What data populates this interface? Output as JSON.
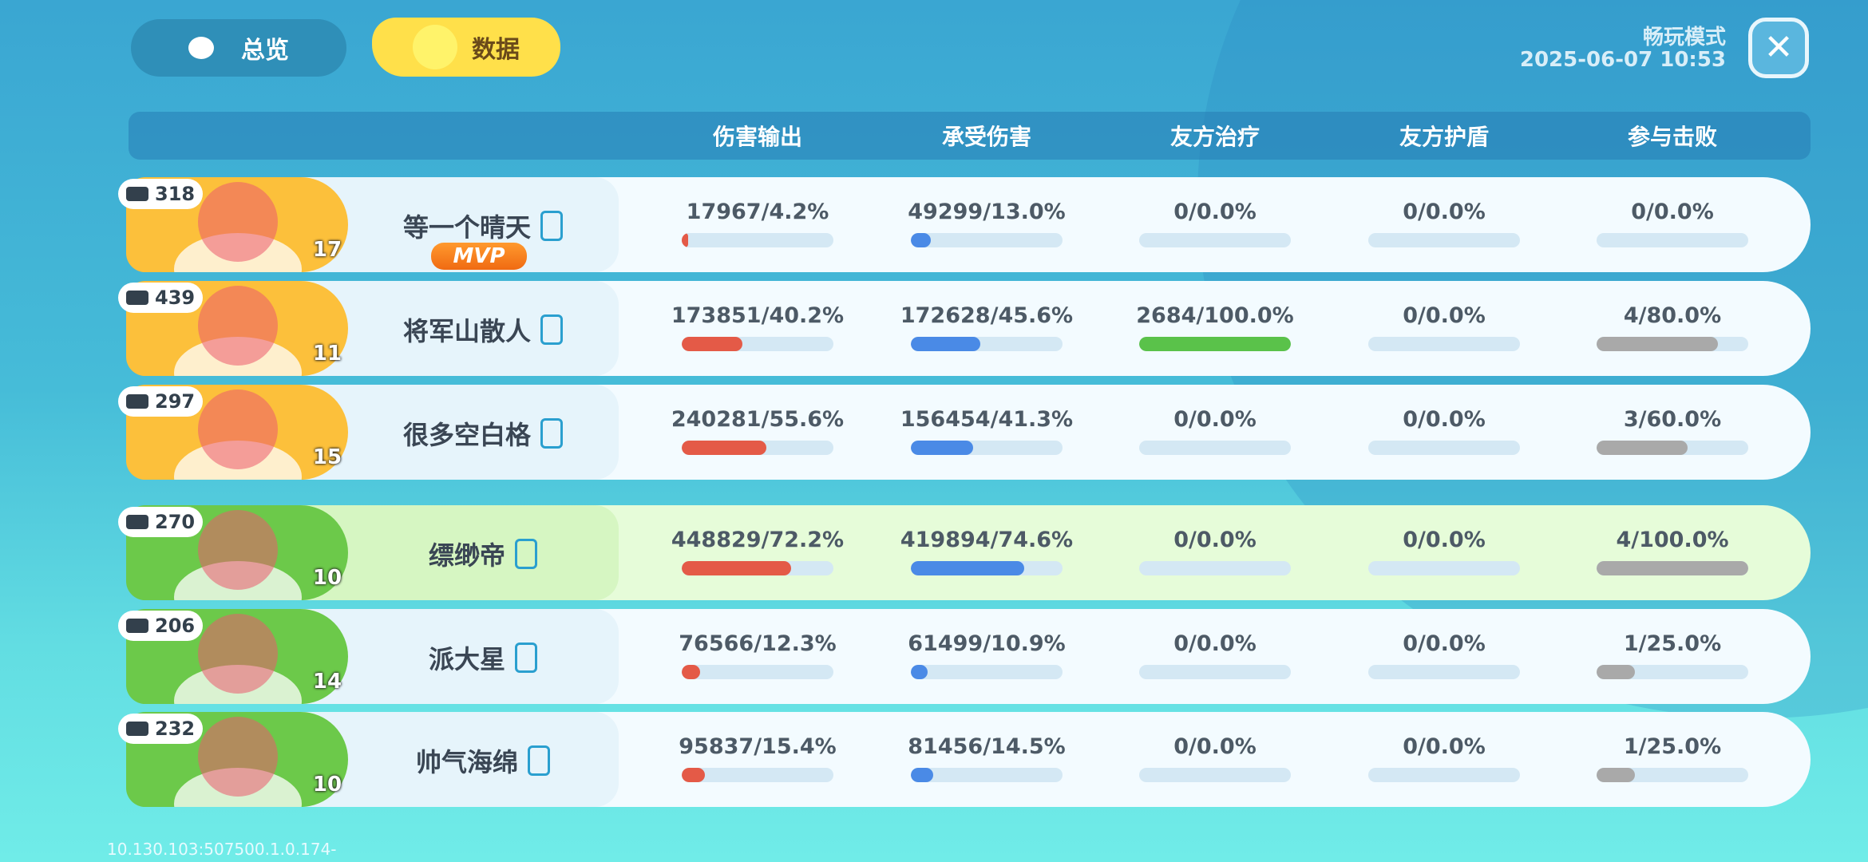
{
  "tabs": [
    {
      "label": "总览"
    },
    {
      "label": "数据",
      "active": true
    }
  ],
  "mode": "畅玩模式",
  "datetime": "2025-06-07 10:53",
  "columns": [
    {
      "title": "伤害输出",
      "color": "#e45a47"
    },
    {
      "title": "承受伤害",
      "color": "#4a8ae6"
    },
    {
      "title": "友方治疗",
      "color": "#5ac24a"
    },
    {
      "title": "友方护盾",
      "color": "#8fc7e6"
    },
    {
      "title": "参与击败",
      "color": "#a9a9a9"
    }
  ],
  "players": [
    {
      "name": "等一个晴天",
      "trophies": 318,
      "level": 17,
      "mvp": "MVP",
      "portrait_color": "#fcc03b",
      "stats": [
        {
          "label": "17967/4.2%",
          "value": 4.2
        },
        {
          "label": "49299/13.0%",
          "value": 13.0
        },
        {
          "label": "0/0.0%",
          "value": 0.0
        },
        {
          "label": "0/0.0%",
          "value": 0.0
        },
        {
          "label": "0/0.0%",
          "value": 0.0
        }
      ]
    },
    {
      "name": "将军山散人",
      "trophies": 439,
      "level": 11,
      "portrait_color": "#fcc03b",
      "stats": [
        {
          "label": "173851/40.2%",
          "value": 40.2
        },
        {
          "label": "172628/45.6%",
          "value": 45.6
        },
        {
          "label": "2684/100.0%",
          "value": 100.0
        },
        {
          "label": "0/0.0%",
          "value": 0.0
        },
        {
          "label": "4/80.0%",
          "value": 80.0
        }
      ]
    },
    {
      "name": "很多空白格",
      "trophies": 297,
      "level": 15,
      "portrait_color": "#fcc03b",
      "stats": [
        {
          "label": "240281/55.6%",
          "value": 55.6
        },
        {
          "label": "156454/41.3%",
          "value": 41.3
        },
        {
          "label": "0/0.0%",
          "value": 0.0
        },
        {
          "label": "0/0.0%",
          "value": 0.0
        },
        {
          "label": "3/60.0%",
          "value": 60.0
        }
      ]
    },
    {
      "name": "缥缈帝",
      "trophies": 270,
      "level": 10,
      "highlight": true,
      "portrait_color": "#6cc94a",
      "stats": [
        {
          "label": "448829/72.2%",
          "value": 72.2
        },
        {
          "label": "419894/74.6%",
          "value": 74.6
        },
        {
          "label": "0/0.0%",
          "value": 0.0
        },
        {
          "label": "0/0.0%",
          "value": 0.0
        },
        {
          "label": "4/100.0%",
          "value": 100.0
        }
      ]
    },
    {
      "name": "派大星",
      "trophies": 206,
      "level": 14,
      "portrait_color": "#6cc94a",
      "stats": [
        {
          "label": "76566/12.3%",
          "value": 12.3
        },
        {
          "label": "61499/10.9%",
          "value": 10.9
        },
        {
          "label": "0/0.0%",
          "value": 0.0
        },
        {
          "label": "0/0.0%",
          "value": 0.0
        },
        {
          "label": "1/25.0%",
          "value": 25.0
        }
      ]
    },
    {
      "name": "帅气海绵",
      "trophies": 232,
      "level": 10,
      "portrait_color": "#6cc94a",
      "stats": [
        {
          "label": "95837/15.4%",
          "value": 15.4
        },
        {
          "label": "81456/14.5%",
          "value": 14.5
        },
        {
          "label": "0/0.0%",
          "value": 0.0
        },
        {
          "label": "0/0.0%",
          "value": 0.0
        },
        {
          "label": "1/25.0%",
          "value": 25.0
        }
      ]
    }
  ],
  "footer": "10.130.103:507500.1.0.174-"
}
